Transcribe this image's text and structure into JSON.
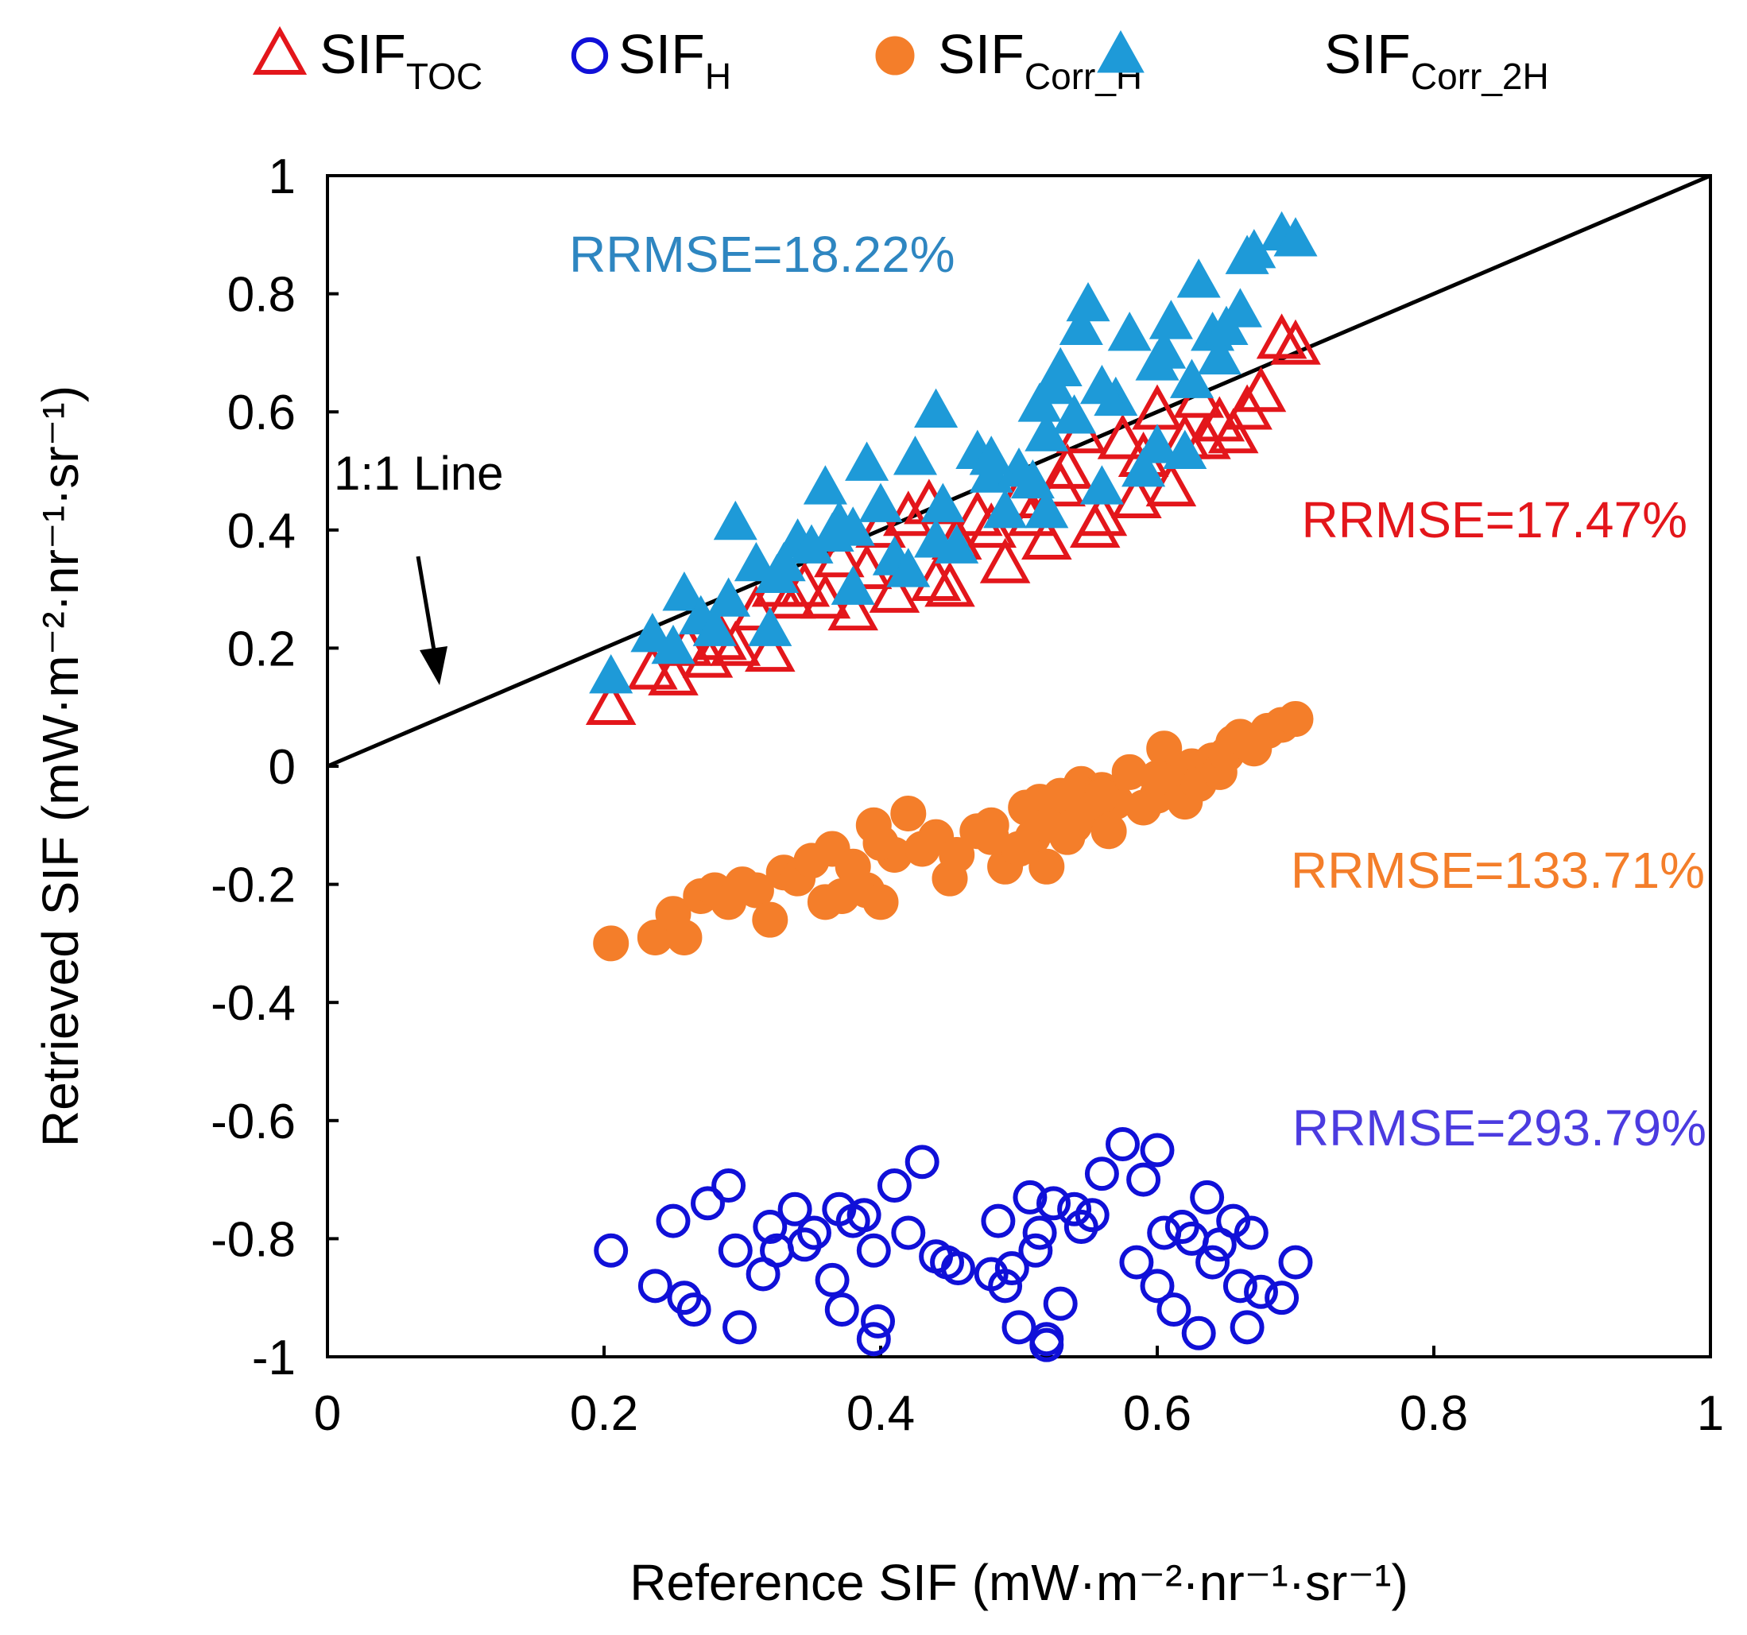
{
  "chart_data": {
    "type": "scatter",
    "title": "",
    "xlabel": "Reference SIF (mW·m⁻²·nr⁻¹·sr⁻¹)",
    "ylabel": "Retrieved SIF (mW·m⁻²·nr⁻¹·sr⁻¹)",
    "xlim": [
      0,
      1
    ],
    "ylim": [
      -1,
      1
    ],
    "xticks": [
      0,
      0.2,
      0.4,
      0.6,
      0.8,
      1
    ],
    "yticks": [
      -1,
      -0.8,
      -0.6,
      -0.4,
      -0.2,
      0,
      0.2,
      0.4,
      0.6,
      0.8,
      1
    ],
    "xtick_labels": [
      "0",
      "0.2",
      "0.4",
      "0.6",
      "0.8",
      "1"
    ],
    "ytick_labels": [
      "-1",
      "-0.8",
      "-0.6",
      "-0.4",
      "-0.2",
      "0",
      "0.2",
      "0.4",
      "0.6",
      "0.8",
      "1"
    ],
    "legend_position": "top",
    "reference_line": {
      "label": "1:1 Line",
      "x": [
        0,
        1
      ],
      "y": [
        0,
        1
      ],
      "color": "#000000"
    },
    "annotations": [
      {
        "id": "corr2h",
        "text": "RRMSE=18.22%",
        "color": "#2E86C1"
      },
      {
        "id": "toc",
        "text": "RRMSE=17.47%",
        "color": "#E3161B"
      },
      {
        "id": "corrh",
        "text": "RRMSE=133.71%",
        "color": "#F47E2A"
      },
      {
        "id": "h",
        "text": "RRMSE=293.79%",
        "color": "#4B3BE0"
      }
    ],
    "series": [
      {
        "name": "SIF_TOC",
        "legend_base": "SIF",
        "legend_sub": "TOC",
        "marker": "triangle-open",
        "color": "#E3161B",
        "x": [
          0.205,
          0.235,
          0.25,
          0.26,
          0.275,
          0.285,
          0.295,
          0.31,
          0.32,
          0.325,
          0.335,
          0.345,
          0.36,
          0.37,
          0.38,
          0.39,
          0.4,
          0.41,
          0.42,
          0.435,
          0.44,
          0.45,
          0.455,
          0.47,
          0.48,
          0.49,
          0.5,
          0.51,
          0.52,
          0.53,
          0.535,
          0.545,
          0.555,
          0.56,
          0.575,
          0.585,
          0.59,
          0.6,
          0.61,
          0.62,
          0.63,
          0.635,
          0.645,
          0.655,
          0.665,
          0.675,
          0.69,
          0.7
        ],
        "y": [
          0.1,
          0.16,
          0.15,
          0.2,
          0.18,
          0.21,
          0.2,
          0.26,
          0.19,
          0.3,
          0.28,
          0.3,
          0.28,
          0.35,
          0.26,
          0.33,
          0.4,
          0.29,
          0.42,
          0.44,
          0.31,
          0.3,
          0.38,
          0.42,
          0.4,
          0.34,
          0.45,
          0.42,
          0.38,
          0.47,
          0.5,
          0.56,
          0.4,
          0.42,
          0.55,
          0.45,
          0.52,
          0.6,
          0.47,
          0.55,
          0.62,
          0.55,
          0.58,
          0.56,
          0.6,
          0.63,
          0.72,
          0.71
        ]
      },
      {
        "name": "SIF_H",
        "legend_base": "SIF",
        "legend_sub": "H",
        "marker": "circle-open",
        "color": "#1010D8",
        "x": [
          0.205,
          0.237,
          0.25,
          0.258,
          0.265,
          0.275,
          0.29,
          0.295,
          0.298,
          0.315,
          0.32,
          0.325,
          0.338,
          0.345,
          0.352,
          0.365,
          0.37,
          0.372,
          0.38,
          0.388,
          0.395,
          0.398,
          0.41,
          0.42,
          0.43,
          0.44,
          0.448,
          0.456,
          0.48,
          0.485,
          0.49,
          0.495,
          0.5,
          0.508,
          0.512,
          0.515,
          0.52,
          0.525,
          0.53,
          0.54,
          0.545,
          0.553,
          0.56,
          0.575,
          0.585,
          0.59,
          0.6,
          0.605,
          0.612,
          0.618,
          0.625,
          0.63,
          0.636,
          0.64,
          0.645,
          0.655,
          0.66,
          0.665,
          0.668,
          0.675,
          0.69,
          0.7,
          0.395,
          0.52,
          0.6
        ],
        "y": [
          -0.82,
          -0.88,
          -0.77,
          -0.9,
          -0.92,
          -0.74,
          -0.71,
          -0.82,
          -0.95,
          -0.86,
          -0.78,
          -0.82,
          -0.75,
          -0.81,
          -0.79,
          -0.87,
          -0.75,
          -0.92,
          -0.77,
          -0.76,
          -0.82,
          -0.94,
          -0.71,
          -0.79,
          -0.67,
          -0.83,
          -0.84,
          -0.85,
          -0.86,
          -0.77,
          -0.88,
          -0.85,
          -0.95,
          -0.73,
          -0.82,
          -0.79,
          -0.97,
          -0.74,
          -0.91,
          -0.75,
          -0.78,
          -0.76,
          -0.69,
          -0.64,
          -0.84,
          -0.7,
          -0.88,
          -0.79,
          -0.92,
          -0.78,
          -0.8,
          -0.96,
          -0.73,
          -0.84,
          -0.81,
          -0.77,
          -0.88,
          -0.95,
          -0.79,
          -0.89,
          -0.9,
          -0.84,
          -0.97,
          -0.98,
          -0.65
        ]
      },
      {
        "name": "SIF_Corr_H",
        "legend_base": "SIF",
        "legend_sub": "Corr_H",
        "marker": "circle-filled",
        "color": "#F47E2A",
        "x": [
          0.205,
          0.237,
          0.25,
          0.258,
          0.27,
          0.28,
          0.29,
          0.3,
          0.31,
          0.32,
          0.33,
          0.34,
          0.35,
          0.36,
          0.365,
          0.372,
          0.38,
          0.39,
          0.395,
          0.4,
          0.41,
          0.42,
          0.43,
          0.44,
          0.45,
          0.455,
          0.47,
          0.48,
          0.49,
          0.5,
          0.505,
          0.51,
          0.515,
          0.52,
          0.525,
          0.53,
          0.535,
          0.54,
          0.545,
          0.55,
          0.56,
          0.565,
          0.57,
          0.58,
          0.59,
          0.6,
          0.605,
          0.61,
          0.62,
          0.625,
          0.63,
          0.64,
          0.645,
          0.65,
          0.655,
          0.66,
          0.67,
          0.68,
          0.69,
          0.7,
          0.48,
          0.52,
          0.56,
          0.6,
          0.4
        ],
        "y": [
          -0.3,
          -0.29,
          -0.25,
          -0.29,
          -0.22,
          -0.21,
          -0.23,
          -0.2,
          -0.21,
          -0.26,
          -0.18,
          -0.19,
          -0.16,
          -0.23,
          -0.14,
          -0.22,
          -0.17,
          -0.21,
          -0.1,
          -0.23,
          -0.15,
          -0.08,
          -0.14,
          -0.12,
          -0.19,
          -0.15,
          -0.11,
          -0.1,
          -0.17,
          -0.14,
          -0.07,
          -0.12,
          -0.06,
          -0.17,
          -0.09,
          -0.05,
          -0.12,
          -0.1,
          -0.03,
          -0.08,
          -0.04,
          -0.11,
          -0.06,
          -0.01,
          -0.07,
          -0.05,
          0.03,
          -0.02,
          -0.06,
          0.0,
          -0.03,
          0.01,
          -0.01,
          0.02,
          0.04,
          0.05,
          0.03,
          0.06,
          0.07,
          0.08,
          -0.12,
          -0.1,
          -0.05,
          -0.02,
          -0.13
        ]
      },
      {
        "name": "SIF_Corr_2H",
        "legend_base": "SIF",
        "legend_sub": "Corr_2H",
        "marker": "triangle-filled",
        "color": "#1E9AD8",
        "x": [
          0.205,
          0.235,
          0.25,
          0.258,
          0.27,
          0.28,
          0.29,
          0.295,
          0.31,
          0.32,
          0.325,
          0.34,
          0.35,
          0.36,
          0.365,
          0.37,
          0.38,
          0.39,
          0.4,
          0.41,
          0.42,
          0.425,
          0.44,
          0.445,
          0.455,
          0.47,
          0.48,
          0.49,
          0.5,
          0.51,
          0.515,
          0.52,
          0.525,
          0.53,
          0.54,
          0.545,
          0.55,
          0.56,
          0.57,
          0.58,
          0.59,
          0.6,
          0.605,
          0.61,
          0.62,
          0.625,
          0.63,
          0.64,
          0.645,
          0.65,
          0.66,
          0.665,
          0.67,
          0.69,
          0.7,
          0.52,
          0.6,
          0.56,
          0.48,
          0.38,
          0.44,
          0.33
        ],
        "y": [
          0.15,
          0.22,
          0.2,
          0.29,
          0.25,
          0.23,
          0.28,
          0.41,
          0.34,
          0.23,
          0.32,
          0.38,
          0.37,
          0.47,
          0.39,
          0.41,
          0.3,
          0.51,
          0.44,
          0.35,
          0.33,
          0.52,
          0.38,
          0.44,
          0.37,
          0.53,
          0.49,
          0.43,
          0.5,
          0.48,
          0.61,
          0.43,
          0.64,
          0.67,
          0.59,
          0.74,
          0.78,
          0.47,
          0.62,
          0.73,
          0.5,
          0.68,
          0.7,
          0.75,
          0.53,
          0.65,
          0.82,
          0.73,
          0.69,
          0.74,
          0.77,
          0.86,
          0.87,
          0.9,
          0.89,
          0.56,
          0.54,
          0.64,
          0.52,
          0.4,
          0.6,
          0.34
        ]
      }
    ]
  }
}
